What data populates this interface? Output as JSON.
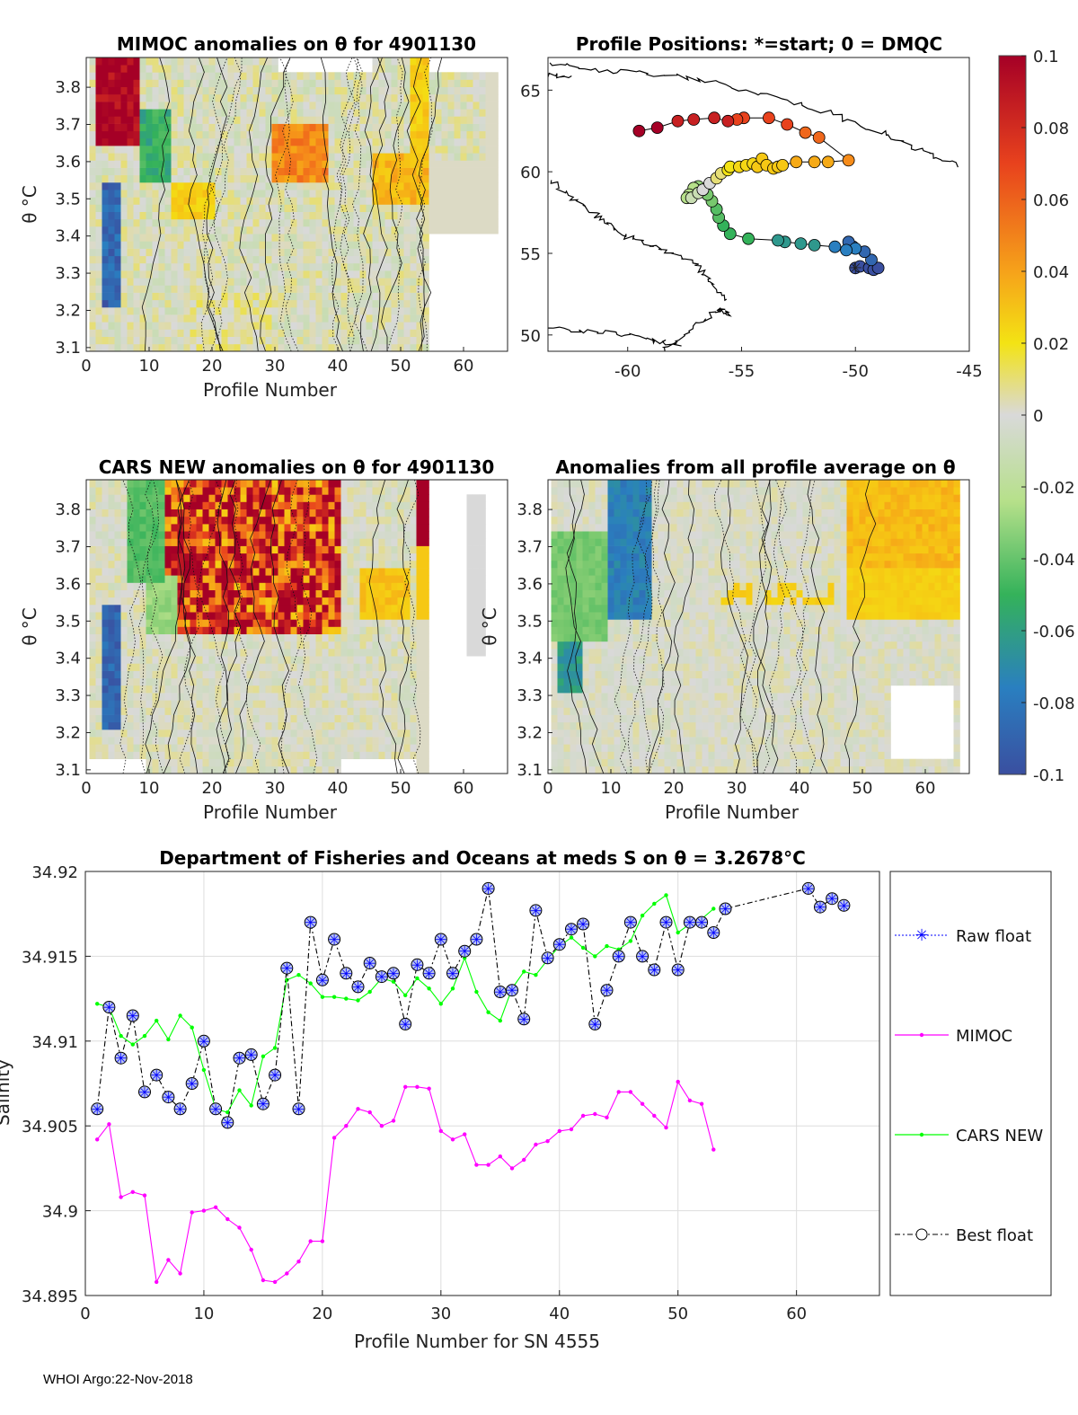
{
  "colors": {
    "raw_float": "#0000ff",
    "mimoc": "#ff00ff",
    "cars": "#00ff00",
    "best": "#000000",
    "grid": "#dddddd",
    "missing": "#d9d9d9"
  },
  "footer": "WHOI Argo:22-Nov-2018",
  "colorbar": {
    "ticks": [
      "0.1",
      "0.08",
      "0.06",
      "0.04",
      "0.02",
      "0",
      "-0.02",
      "-0.04",
      "-0.06",
      "-0.08",
      "-0.1"
    ],
    "min": -0.1,
    "max": 0.1
  },
  "chart_data": [
    {
      "id": "mimoc",
      "type": "heatmap",
      "title": "MIMOC anomalies on θ  for 4901130",
      "xlabel": "Profile Number",
      "ylabel": "θ °C",
      "xlim": [
        0,
        67
      ],
      "ylim": [
        3.09,
        3.88
      ],
      "xticks": [
        "0",
        "10",
        "20",
        "30",
        "40",
        "50",
        "60"
      ],
      "yticks": [
        "3.8",
        "3.7",
        "3.6",
        "3.5",
        "3.4",
        "3.3",
        "3.2",
        "3.1"
      ]
    },
    {
      "id": "positions",
      "type": "scatter",
      "title": "Profile Positions: *=start; 0 = DMQC",
      "xlim": [
        -63.5,
        -45
      ],
      "ylim": [
        49,
        67
      ],
      "xticks": [
        "-60",
        "-55",
        "-50",
        "-45"
      ],
      "yticks": [
        "65",
        "60",
        "55",
        "50"
      ],
      "lon": [
        -50,
        -49.8,
        -49.4,
        -49.2,
        -49.0,
        -49.3,
        -49.6,
        -50.1,
        -50.3,
        -50.0,
        -50.4,
        -50.9,
        -51.8,
        -52.4,
        -53.1,
        -53.4,
        -54.7,
        -55.5,
        -55.8,
        -56.0,
        -56.1,
        -56.3,
        -56.5,
        -56.7,
        -56.9,
        -57.1,
        -57.3,
        -57.4,
        -57.2,
        -56.9,
        -56.7,
        -56.4,
        -56.1,
        -55.9,
        -55.6,
        -55.5,
        -55.1,
        -54.8,
        -54.5,
        -54.3,
        -54.1,
        -53.9,
        -53.6,
        -53.4,
        -53.2,
        -52.6,
        -51.8,
        -51.2,
        -50.3,
        -51.6,
        -52.2,
        -53.0,
        -53.8,
        -54.9,
        -55.2,
        -55.6,
        -56.2,
        -57.1,
        -57.8,
        -58.7,
        -59.5
      ],
      "lat": [
        54.1,
        54.2,
        54.1,
        54.0,
        54.1,
        54.6,
        55.1,
        55.4,
        55.7,
        55.3,
        55.2,
        55.4,
        55.5,
        55.6,
        55.7,
        55.8,
        55.9,
        56.2,
        56.7,
        57.2,
        57.7,
        58.2,
        58.6,
        58.9,
        59.1,
        59.0,
        58.6,
        58.4,
        58.4,
        58.7,
        58.9,
        59.3,
        59.6,
        59.9,
        60.1,
        60.3,
        60.3,
        60.4,
        60.5,
        60.3,
        60.8,
        60.4,
        60.2,
        60.3,
        60.4,
        60.6,
        60.6,
        60.6,
        60.7,
        62.1,
        62.4,
        62.9,
        63.3,
        63.3,
        63.2,
        63.1,
        63.3,
        63.2,
        63.1,
        62.7,
        62.5
      ],
      "anomaly": [
        -0.1,
        -0.1,
        -0.1,
        -0.1,
        -0.1,
        -0.09,
        -0.09,
        -0.09,
        -0.09,
        -0.08,
        -0.08,
        -0.08,
        -0.07,
        -0.07,
        -0.07,
        -0.07,
        -0.06,
        -0.06,
        -0.06,
        -0.05,
        -0.05,
        -0.04,
        -0.04,
        -0.03,
        -0.03,
        -0.02,
        -0.02,
        -0.02,
        -0.01,
        -0.01,
        0.0,
        0.0,
        0.01,
        0.01,
        0.02,
        0.02,
        0.03,
        0.03,
        0.03,
        0.04,
        0.04,
        0.04,
        0.04,
        0.04,
        0.04,
        0.05,
        0.05,
        0.05,
        0.06,
        0.07,
        0.07,
        0.08,
        0.08,
        0.08,
        0.08,
        0.09,
        0.09,
        0.09,
        0.09,
        0.1,
        0.1
      ]
    },
    {
      "id": "cars",
      "type": "heatmap",
      "title": "CARS NEW anomalies on θ for 4901130",
      "xlabel": "Profile Number",
      "ylabel": "θ °C",
      "xlim": [
        0,
        67
      ],
      "ylim": [
        3.09,
        3.88
      ],
      "xticks": [
        "0",
        "10",
        "20",
        "30",
        "40",
        "50",
        "60"
      ],
      "yticks": [
        "3.8",
        "3.7",
        "3.6",
        "3.5",
        "3.4",
        "3.3",
        "3.2",
        "3.1"
      ]
    },
    {
      "id": "allavg",
      "type": "heatmap",
      "title": "Anomalies from all profile average on θ",
      "xlabel": "Profile Number",
      "ylabel": "θ °C",
      "xlim": [
        0,
        67
      ],
      "ylim": [
        3.09,
        3.88
      ],
      "xticks": [
        "0",
        "10",
        "20",
        "30",
        "40",
        "50",
        "60"
      ],
      "yticks": [
        "3.8",
        "3.7",
        "3.6",
        "3.5",
        "3.4",
        "3.3",
        "3.2",
        "3.1"
      ]
    },
    {
      "id": "salinity",
      "type": "line",
      "title": "Department of Fisheries and Oceans at meds S on θ = 3.2678°C",
      "xlabel": "Profile Number for SN 4555",
      "ylabel": "Salinity",
      "xlim": [
        0,
        67
      ],
      "ylim": [
        34.895,
        34.92
      ],
      "xticks": [
        "0",
        "10",
        "20",
        "30",
        "40",
        "50",
        "60"
      ],
      "yticks": [
        "34.92",
        "34.915",
        "34.91",
        "34.905",
        "34.9",
        "34.895"
      ],
      "legend": [
        "Raw float",
        "MIMOC",
        "CARS NEW",
        "Best float"
      ],
      "series": [
        {
          "name": "Best float",
          "x": [
            1,
            2,
            3,
            4,
            5,
            6,
            7,
            8,
            9,
            10,
            11,
            12,
            13,
            14,
            15,
            16,
            17,
            18,
            19,
            20,
            21,
            22,
            23,
            24,
            25,
            26,
            27,
            28,
            29,
            30,
            31,
            32,
            33,
            34,
            35,
            36,
            37,
            38,
            39,
            40,
            41,
            42,
            43,
            44,
            45,
            46,
            47,
            48,
            49,
            50,
            51,
            52,
            53,
            54,
            61,
            62,
            63,
            64
          ],
          "y": [
            34.906,
            34.912,
            34.909,
            34.9115,
            34.907,
            34.908,
            34.9067,
            34.906,
            34.9075,
            34.91,
            34.906,
            34.9052,
            34.909,
            34.9092,
            34.9063,
            34.908,
            34.9143,
            34.906,
            34.917,
            34.9136,
            34.916,
            34.914,
            34.9132,
            34.9146,
            34.9138,
            34.914,
            34.911,
            34.9145,
            34.914,
            34.916,
            34.914,
            34.9153,
            34.916,
            34.919,
            34.9129,
            34.913,
            34.9113,
            34.9177,
            34.9149,
            34.9157,
            34.9166,
            34.9169,
            34.911,
            34.913,
            34.915,
            34.917,
            34.915,
            34.9142,
            34.917,
            34.9142,
            34.917,
            34.917,
            34.9164,
            34.9178,
            34.919,
            34.9179,
            34.9184,
            34.918
          ]
        },
        {
          "name": "CARS NEW",
          "x": [
            1,
            2,
            3,
            4,
            5,
            6,
            7,
            8,
            9,
            10,
            11,
            12,
            13,
            14,
            15,
            16,
            17,
            18,
            19,
            20,
            21,
            22,
            23,
            24,
            25,
            26,
            27,
            28,
            29,
            30,
            31,
            32,
            33,
            34,
            35,
            36,
            37,
            38,
            39,
            40,
            41,
            42,
            43,
            44,
            45,
            46,
            47,
            48,
            49,
            50,
            51,
            52,
            53
          ],
          "y": [
            34.9122,
            34.912,
            34.9103,
            34.9098,
            34.9103,
            34.9112,
            34.9101,
            34.9115,
            34.9108,
            34.9083,
            34.906,
            34.9058,
            34.9071,
            34.9062,
            34.9091,
            34.9096,
            34.9136,
            34.9139,
            34.9134,
            34.9126,
            34.9126,
            34.9125,
            34.9124,
            34.9129,
            34.9137,
            34.9135,
            34.9127,
            34.9137,
            34.9131,
            34.9122,
            34.9131,
            34.9149,
            34.9129,
            34.9117,
            34.9112,
            34.9131,
            34.9141,
            34.9139,
            34.9148,
            34.9156,
            34.9161,
            34.9155,
            34.915,
            34.9156,
            34.9154,
            34.9159,
            34.9174,
            34.9181,
            34.9186,
            34.9164,
            34.9169,
            34.9172,
            34.9178
          ]
        },
        {
          "name": "MIMOC",
          "x": [
            1,
            2,
            3,
            4,
            5,
            6,
            7,
            8,
            9,
            10,
            11,
            12,
            13,
            14,
            15,
            16,
            17,
            18,
            19,
            20,
            21,
            22,
            23,
            24,
            25,
            26,
            27,
            28,
            29,
            30,
            31,
            32,
            33,
            34,
            35,
            36,
            37,
            38,
            39,
            40,
            41,
            42,
            43,
            44,
            45,
            46,
            47,
            48,
            49,
            50,
            51,
            52,
            53
          ],
          "y": [
            34.9042,
            34.9051,
            34.9008,
            34.9011,
            34.9009,
            34.8958,
            34.8971,
            34.8963,
            34.8999,
            34.9,
            34.9002,
            34.8995,
            34.899,
            34.8977,
            34.8959,
            34.8958,
            34.8963,
            34.897,
            34.8982,
            34.8982,
            34.9043,
            34.905,
            34.906,
            34.9058,
            34.905,
            34.9053,
            34.9073,
            34.9073,
            34.9072,
            34.9047,
            34.9042,
            34.9045,
            34.9027,
            34.9027,
            34.9032,
            34.9025,
            34.903,
            34.9039,
            34.9041,
            34.9047,
            34.9048,
            34.9056,
            34.9057,
            34.9055,
            34.907,
            34.907,
            34.9063,
            34.9056,
            34.9049,
            34.9076,
            34.9065,
            34.9063,
            34.9036
          ]
        }
      ]
    }
  ]
}
